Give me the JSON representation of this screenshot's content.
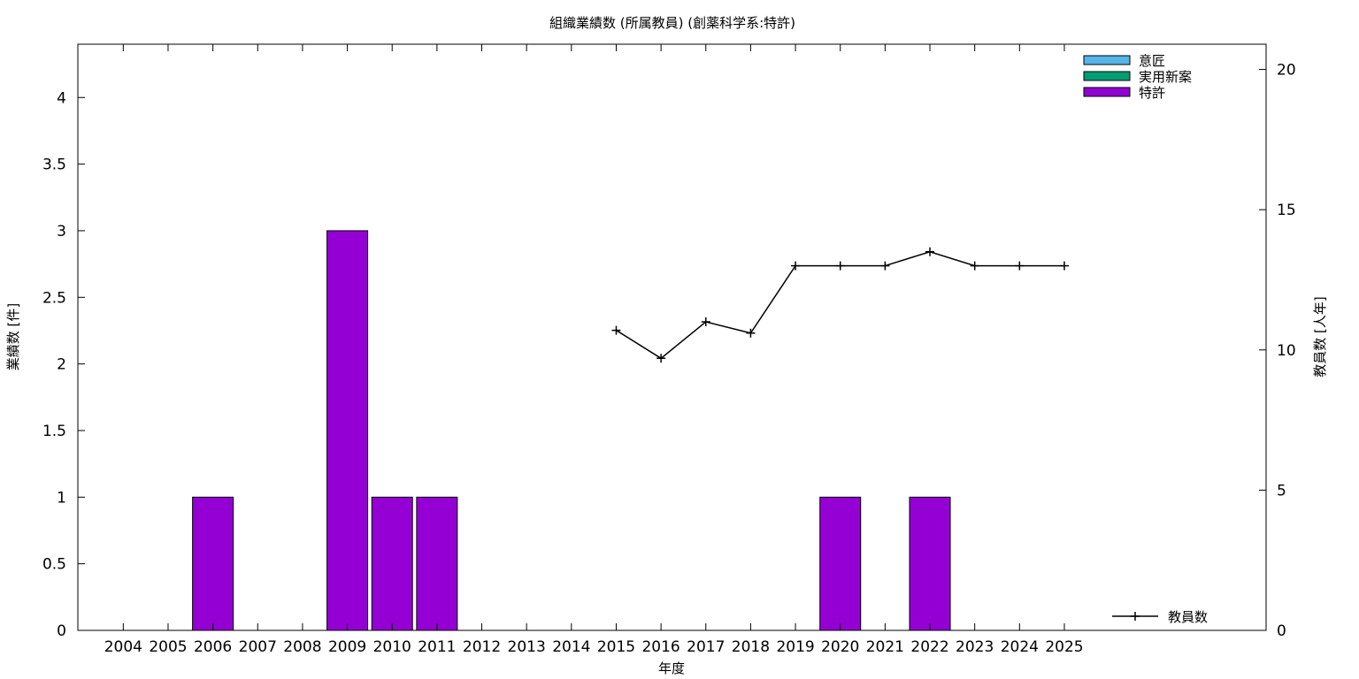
{
  "chart_data": {
    "type": "bar",
    "title": "組織業績数 (所属教員) (創薬科学系:特許)",
    "xlabel": "年度",
    "ylabel": "業績数 [件]",
    "y2label": "教員数 [人年]",
    "categories": [
      "2004",
      "2005",
      "2006",
      "2007",
      "2008",
      "2009",
      "2010",
      "2011",
      "2012",
      "2013",
      "2014",
      "2015",
      "2016",
      "2017",
      "2018",
      "2019",
      "2020",
      "2021",
      "2022",
      "2023",
      "2024",
      "2025"
    ],
    "ylim": [
      0,
      4.4
    ],
    "y_ticks": [
      "0",
      "0.5",
      "1",
      "1.5",
      "2",
      "2.5",
      "3",
      "3.5",
      "4"
    ],
    "y2lim": [
      0,
      20.9
    ],
    "y2_ticks": [
      "0",
      "5",
      "10",
      "15",
      "20"
    ],
    "grid": false,
    "bar_series": [
      {
        "name": "意匠",
        "color": "#56b4e9",
        "values": [
          0,
          0,
          0,
          0,
          0,
          0,
          0,
          0,
          0,
          0,
          0,
          0,
          0,
          0,
          0,
          0,
          0,
          0,
          0,
          0,
          0,
          0
        ]
      },
      {
        "name": "実用新案",
        "color": "#009e73",
        "values": [
          0,
          0,
          0,
          0,
          0,
          0,
          0,
          0,
          0,
          0,
          0,
          0,
          0,
          0,
          0,
          0,
          0,
          0,
          0,
          0,
          0,
          0
        ]
      },
      {
        "name": "特許",
        "color": "#9400d3",
        "values": [
          0,
          0,
          1,
          0,
          0,
          3,
          1,
          1,
          0,
          0,
          0,
          0,
          0,
          0,
          0,
          0,
          1,
          0,
          1,
          0,
          0,
          0
        ]
      }
    ],
    "line_series": {
      "name": "教員数",
      "axis": "y2",
      "color": "#000000",
      "points": [
        {
          "x": "2015",
          "y": 10.7
        },
        {
          "x": "2016",
          "y": 9.7
        },
        {
          "x": "2017",
          "y": 11.0
        },
        {
          "x": "2018",
          "y": 10.6
        },
        {
          "x": "2019",
          "y": 13.0
        },
        {
          "x": "2020",
          "y": 13.0
        },
        {
          "x": "2021",
          "y": 13.0
        },
        {
          "x": "2022",
          "y": 13.5
        },
        {
          "x": "2023",
          "y": 13.0
        },
        {
          "x": "2024",
          "y": 13.0
        },
        {
          "x": "2025",
          "y": 13.0
        }
      ]
    },
    "legend_placement": "top-right",
    "line_legend_placement": "bottom-right"
  }
}
